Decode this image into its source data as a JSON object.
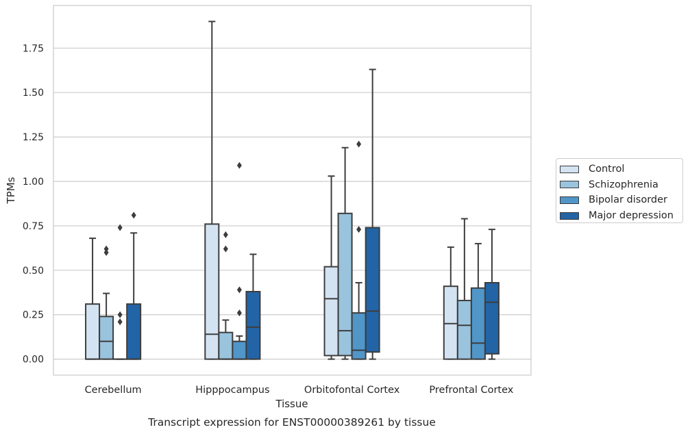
{
  "chart_data": {
    "type": "box",
    "caption": "Transcript expression for ENST00000389261 by tissue",
    "xlabel": "Tissue",
    "ylabel": "TPMs",
    "ylim": [
      -0.09,
      1.99
    ],
    "yticks": [
      "0.00",
      "0.25",
      "0.50",
      "0.75",
      "1.00",
      "1.25",
      "1.50",
      "1.75"
    ],
    "grid": "horizontal",
    "legend_position": "right-outside",
    "categories": [
      "Cerebellum",
      "Hipppocampus",
      "Orbitofontal Cortex",
      "Prefrontal Cortex"
    ],
    "series": [
      {
        "name": "Control",
        "color": "#d3e3f2",
        "boxes": [
          {
            "min": 0,
            "q1": 0,
            "median": 0,
            "q3": 0.31,
            "max": 0.68,
            "outliers": []
          },
          {
            "min": 0,
            "q1": 0,
            "median": 0.14,
            "q3": 0.76,
            "max": 1.9,
            "outliers": []
          },
          {
            "min": 0,
            "q1": 0.02,
            "median": 0.34,
            "q3": 0.52,
            "max": 1.03,
            "outliers": []
          },
          {
            "min": 0,
            "q1": 0,
            "median": 0.2,
            "q3": 0.41,
            "max": 0.63,
            "outliers": []
          }
        ]
      },
      {
        "name": "Schizophrenia",
        "color": "#9ac3dd",
        "boxes": [
          {
            "min": 0,
            "q1": 0,
            "median": 0.1,
            "q3": 0.24,
            "max": 0.37,
            "outliers": [
              0.6,
              0.62
            ]
          },
          {
            "min": 0,
            "q1": 0,
            "median": 0,
            "q3": 0.15,
            "max": 0.22,
            "outliers": [
              0.62,
              0.7
            ]
          },
          {
            "min": 0,
            "q1": 0.02,
            "median": 0.16,
            "q3": 0.82,
            "max": 1.19,
            "outliers": []
          },
          {
            "min": 0,
            "q1": 0,
            "median": 0.19,
            "q3": 0.33,
            "max": 0.79,
            "outliers": []
          }
        ]
      },
      {
        "name": "Bipolar disorder",
        "color": "#5096c8",
        "boxes": [
          {
            "min": 0,
            "q1": 0,
            "median": 0,
            "q3": 0,
            "max": 0,
            "outliers": [
              0.21,
              0.25,
              0.74
            ]
          },
          {
            "min": 0,
            "q1": 0,
            "median": 0,
            "q3": 0.1,
            "max": 0.13,
            "outliers": [
              0.26,
              0.39,
              1.09
            ]
          },
          {
            "min": 0,
            "q1": 0,
            "median": 0.05,
            "q3": 0.26,
            "max": 0.43,
            "outliers": [
              0.73,
              1.21
            ]
          },
          {
            "min": 0,
            "q1": 0,
            "median": 0.09,
            "q3": 0.4,
            "max": 0.65,
            "outliers": []
          }
        ]
      },
      {
        "name": "Major depression",
        "color": "#2264a6",
        "boxes": [
          {
            "min": 0,
            "q1": 0,
            "median": 0,
            "q3": 0.31,
            "max": 0.71,
            "outliers": [
              0.81
            ]
          },
          {
            "min": 0,
            "q1": 0,
            "median": 0.18,
            "q3": 0.38,
            "max": 0.59,
            "outliers": []
          },
          {
            "min": 0,
            "q1": 0.04,
            "median": 0.27,
            "q3": 0.74,
            "max": 1.63,
            "outliers": []
          },
          {
            "min": 0,
            "q1": 0.03,
            "median": 0.32,
            "q3": 0.43,
            "max": 0.73,
            "outliers": []
          }
        ]
      }
    ]
  }
}
